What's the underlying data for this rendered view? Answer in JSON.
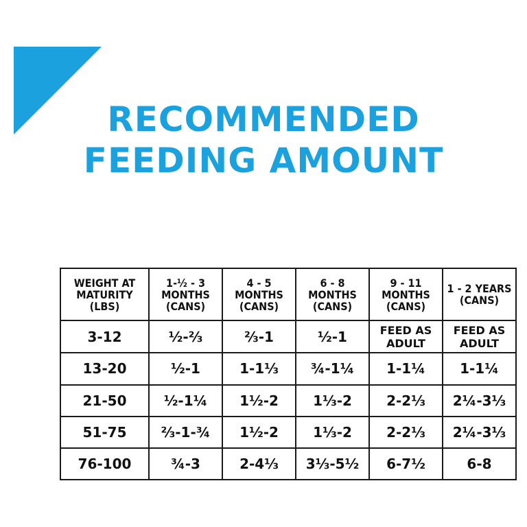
{
  "title": {
    "line1": "RECOMMENDED",
    "line2": "FEEDING AMOUNT"
  },
  "colors": {
    "accent": "#1ba1dd",
    "text": "#111111",
    "border": "#1a1a1a"
  },
  "table": {
    "headers": [
      "WEIGHT AT MATURITY (LBS)",
      "1-½ - 3 MONTHS (CANS)",
      "4 - 5 MONTHS (CANS)",
      "6 - 8 MONTHS (CANS)",
      "9 - 11 MONTHS (CANS)",
      "1 - 2 YEARS (CANS)"
    ],
    "rows": [
      [
        "3-12",
        "½-⅔",
        "⅔-1",
        "½-1",
        "FEED AS ADULT",
        "FEED AS ADULT"
      ],
      [
        "13-20",
        "½-1",
        "1-1⅓",
        "¾-1¼",
        "1-1¼",
        "1-1¼"
      ],
      [
        "21-50",
        "½-1¼",
        "1½-2",
        "1⅓-2",
        "2-2⅓",
        "2¼-3⅓"
      ],
      [
        "51-75",
        "⅔-1-¾",
        "1½-2",
        "1⅓-2",
        "2-2⅓",
        "2¼-3⅓"
      ],
      [
        "76-100",
        "¾-3",
        "2-4⅓",
        "3⅓-5½",
        "6-7½",
        "6-8"
      ]
    ]
  }
}
